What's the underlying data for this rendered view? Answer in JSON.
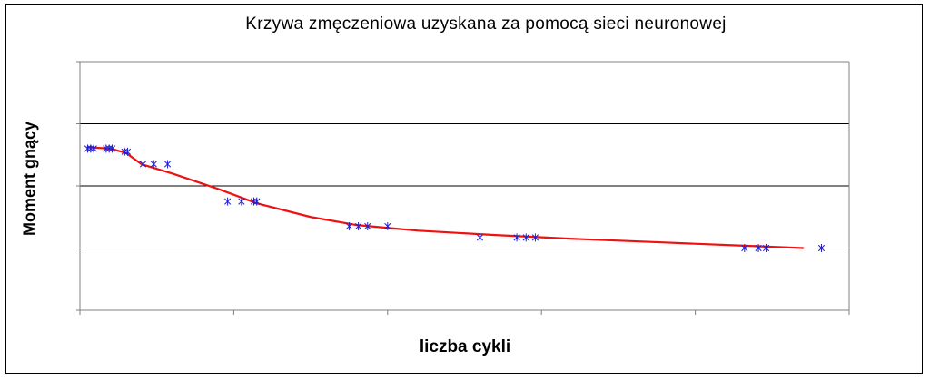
{
  "chart_data": {
    "type": "scatter",
    "title": "Krzywa zmęczeniowa uzyskana za pomocą sieci neuronowej",
    "xlabel": "liczba cykli",
    "ylabel": "Moment gnący",
    "xlim": [
      0,
      5
    ],
    "ylim": [
      0,
      4
    ],
    "grid": true,
    "x_ticks": [
      0,
      1,
      2,
      3,
      4,
      5
    ],
    "y_gridlines": [
      1,
      2,
      3
    ],
    "tick_labels_shown": false,
    "legend": "none",
    "series": [
      {
        "kind": "points",
        "marker": "asterisk",
        "color": "#1f1fd6",
        "points": [
          [
            0.05,
            2.6
          ],
          [
            0.07,
            2.6
          ],
          [
            0.09,
            2.6
          ],
          [
            0.17,
            2.6
          ],
          [
            0.19,
            2.6
          ],
          [
            0.21,
            2.6
          ],
          [
            0.29,
            2.55
          ],
          [
            0.31,
            2.55
          ],
          [
            0.41,
            2.35
          ],
          [
            0.48,
            2.35
          ],
          [
            0.57,
            2.35
          ],
          [
            0.96,
            1.75
          ],
          [
            1.05,
            1.75
          ],
          [
            1.13,
            1.75
          ],
          [
            1.15,
            1.75
          ],
          [
            1.75,
            1.35
          ],
          [
            1.81,
            1.35
          ],
          [
            1.87,
            1.35
          ],
          [
            2.0,
            1.35
          ],
          [
            2.6,
            1.17
          ],
          [
            2.84,
            1.17
          ],
          [
            2.9,
            1.17
          ],
          [
            2.96,
            1.17
          ],
          [
            4.32,
            1.0
          ],
          [
            4.41,
            1.0
          ],
          [
            4.46,
            1.0
          ],
          [
            4.82,
            1.0
          ]
        ]
      },
      {
        "kind": "line",
        "color": "#ee1111",
        "points": [
          [
            0.05,
            2.62
          ],
          [
            0.2,
            2.6
          ],
          [
            0.3,
            2.53
          ],
          [
            0.4,
            2.35
          ],
          [
            0.6,
            2.2
          ],
          [
            0.9,
            1.95
          ],
          [
            1.15,
            1.72
          ],
          [
            1.5,
            1.5
          ],
          [
            1.8,
            1.37
          ],
          [
            2.2,
            1.28
          ],
          [
            2.7,
            1.21
          ],
          [
            3.2,
            1.15
          ],
          [
            3.8,
            1.09
          ],
          [
            4.3,
            1.04
          ],
          [
            4.7,
            1.0
          ]
        ]
      }
    ]
  },
  "colors": {
    "frame": "#000000",
    "gridline": "#000000",
    "axis": "#808080",
    "marker": "#1f1fd6",
    "fit_line": "#ee1111"
  }
}
